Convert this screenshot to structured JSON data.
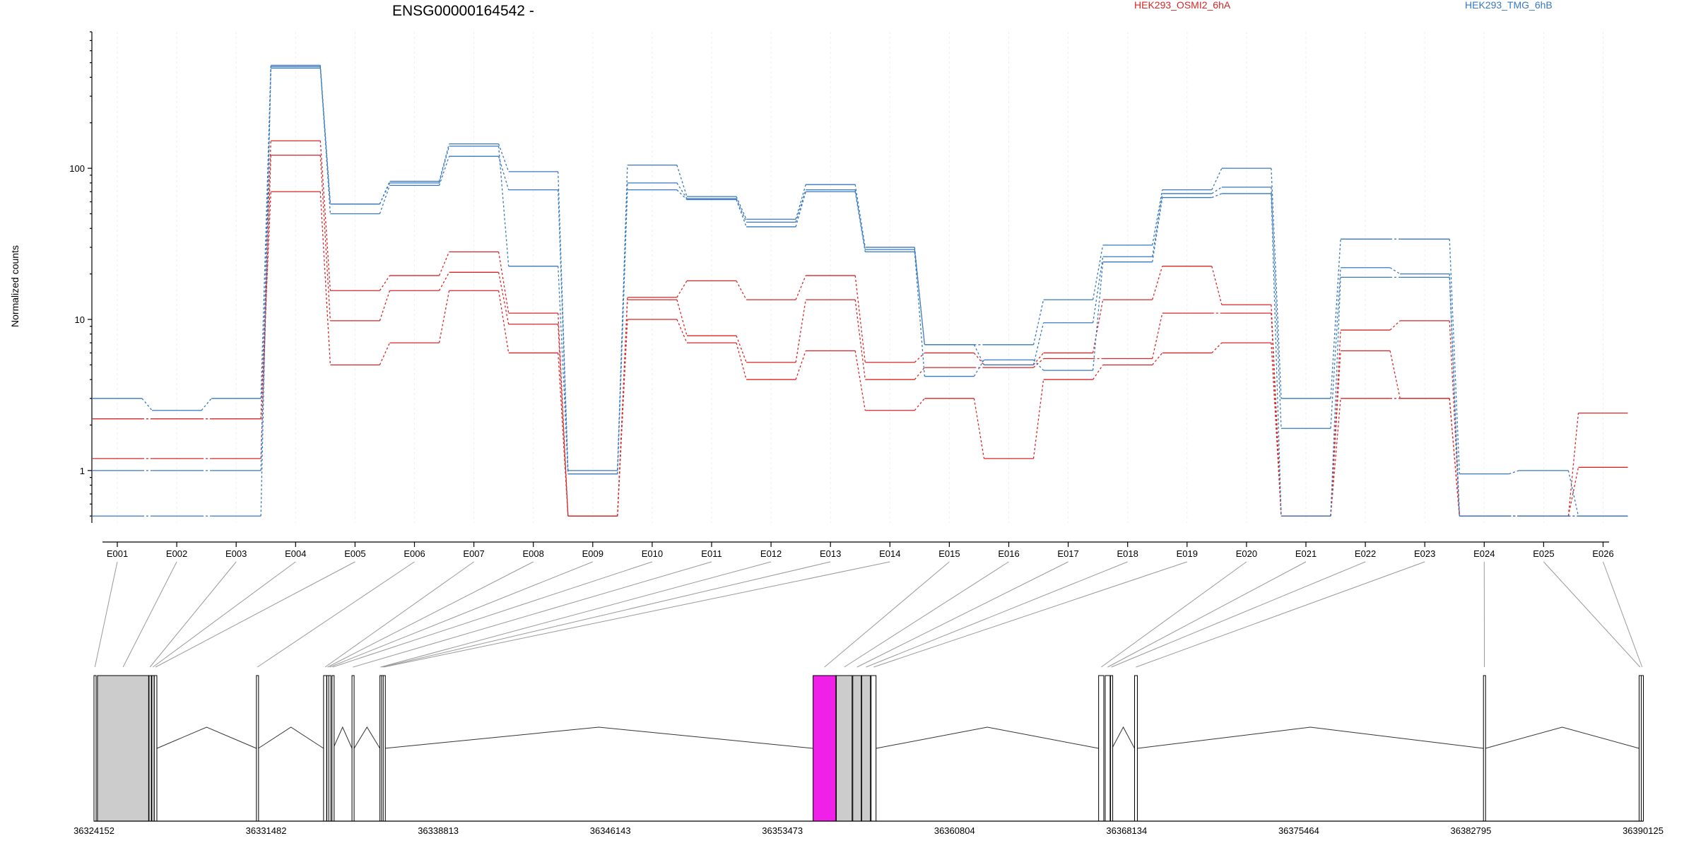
{
  "chart_data": {
    "type": "line",
    "title": "ENSG00000164542 -",
    "ylabel": "Normalized counts",
    "xlabel": "",
    "yscale": "log",
    "ylim": [
      0.45,
      800
    ],
    "yticks": [
      1,
      10,
      100
    ],
    "ytick_labels": [
      "1",
      "10",
      "100"
    ],
    "grid": "vertical dashed light",
    "legend_placement": "top",
    "categories": [
      "E001",
      "E002",
      "E003",
      "E004",
      "E005",
      "E006",
      "E007",
      "E008",
      "E009",
      "E010",
      "E011",
      "E012",
      "E013",
      "E014",
      "E015",
      "E016",
      "E017",
      "E018",
      "E019",
      "E020",
      "E021",
      "E022",
      "E023",
      "E024",
      "E025",
      "E026"
    ],
    "groups": [
      {
        "name": "HEK293_OSMI2_6hA",
        "color": "#d62728"
      },
      {
        "name": "HEK293_TMG_6hB",
        "color": "#3778bf"
      }
    ],
    "series": [
      {
        "group": "HEK293_OSMI2_6hA",
        "values": [
          2.2,
          2.2,
          2.2,
          152,
          15.5,
          19.5,
          28,
          11,
          0.5,
          14,
          18,
          13.5,
          19.5,
          5.2,
          6,
          5,
          6,
          13.5,
          22.5,
          12.5,
          0.5,
          8.5,
          9.8,
          0.5,
          0.5,
          2.4
        ]
      },
      {
        "group": "HEK293_OSMI2_6hA",
        "values": [
          1.2,
          1.2,
          1.2,
          122,
          9.8,
          15.5,
          20.5,
          9.3,
          0.5,
          13.5,
          7.8,
          5.2,
          13.5,
          4,
          4.8,
          4.8,
          5.5,
          5.5,
          11,
          11,
          0.5,
          6.2,
          3,
          0.5,
          0.5,
          1.05
        ]
      },
      {
        "group": "HEK293_OSMI2_6hA",
        "values": [
          2.2,
          2.2,
          2.2,
          70,
          5,
          7,
          15.5,
          6,
          0.5,
          10,
          7,
          4,
          6.2,
          2.5,
          3,
          1.2,
          4,
          5,
          6,
          7,
          0.5,
          3,
          3,
          0.5,
          0.5,
          0.5
        ]
      },
      {
        "group": "HEK293_TMG_6hB",
        "values": [
          3,
          2.5,
          3,
          480,
          58,
          82,
          145,
          95,
          1,
          105,
          65,
          46,
          78,
          30,
          6.8,
          6.8,
          13.5,
          31,
          72,
          100,
          3,
          34,
          34,
          0.95,
          1,
          0.5
        ]
      },
      {
        "group": "HEK293_TMG_6hB",
        "values": [
          1,
          1,
          1,
          470,
          50,
          77,
          120,
          72,
          0.95,
          80,
          63,
          44,
          72,
          29,
          6.8,
          5,
          9.5,
          26,
          68,
          75,
          1.9,
          22,
          20,
          0.5,
          0.5,
          0.5
        ]
      },
      {
        "group": "HEK293_TMG_6hB",
        "values": [
          0.5,
          0.5,
          0.5,
          460,
          58,
          80,
          140,
          22.5,
          0.95,
          72,
          62,
          41,
          70,
          28,
          4.2,
          5.4,
          4.6,
          24,
          64,
          68,
          0.5,
          19,
          19,
          0.5,
          0.5,
          0.5
        ]
      }
    ],
    "highlight_exon": "E015",
    "highlight_color": "#f020e8",
    "gene_model": {
      "coordinate_labels": [
        "36324152",
        "36331482",
        "36338813",
        "36346143",
        "36353473",
        "36360804",
        "36368134",
        "36375464",
        "36382795",
        "36390125"
      ],
      "coord_start": 36324152,
      "coord_end": 36390125,
      "exons": [
        {
          "id": "E001",
          "start": 36324152,
          "end": 36324230
        },
        {
          "id": "E002",
          "start": 36324300,
          "end": 36326480
        },
        {
          "id": "E003",
          "start": 36326500,
          "end": 36326570
        },
        {
          "id": "E004",
          "start": 36326620,
          "end": 36326700
        },
        {
          "id": "E005",
          "start": 36326720,
          "end": 36326830
        },
        {
          "id": "E006",
          "start": 36331070,
          "end": 36331150
        },
        {
          "id": "E007",
          "start": 36333930,
          "end": 36334060
        },
        {
          "id": "E008",
          "start": 36334070,
          "end": 36334130
        },
        {
          "id": "E009",
          "start": 36334150,
          "end": 36334230
        },
        {
          "id": "E010",
          "start": 36334290,
          "end": 36334340
        },
        {
          "id": "E011",
          "start": 36335140,
          "end": 36335230
        },
        {
          "id": "E012",
          "start": 36336330,
          "end": 36336380
        },
        {
          "id": "E013",
          "start": 36336400,
          "end": 36336440
        },
        {
          "id": "E014",
          "start": 36336470,
          "end": 36336520
        },
        {
          "id": "E015",
          "start": 36354780,
          "end": 36355750
        },
        {
          "id": "E016",
          "start": 36355770,
          "end": 36356440
        },
        {
          "id": "E017",
          "start": 36356470,
          "end": 36356830
        },
        {
          "id": "E018",
          "start": 36356850,
          "end": 36357220
        },
        {
          "id": "E019",
          "start": 36357250,
          "end": 36357460
        },
        {
          "id": "E020",
          "start": 36366940,
          "end": 36367160
        },
        {
          "id": "E021",
          "start": 36367220,
          "end": 36367430
        },
        {
          "id": "E022",
          "start": 36367450,
          "end": 36367510
        },
        {
          "id": "E023",
          "start": 36368470,
          "end": 36368590
        },
        {
          "id": "E024",
          "start": 36383330,
          "end": 36383410
        },
        {
          "id": "E025",
          "start": 36389960,
          "end": 36390040
        },
        {
          "id": "E026",
          "start": 36390050,
          "end": 36390125
        }
      ]
    }
  }
}
